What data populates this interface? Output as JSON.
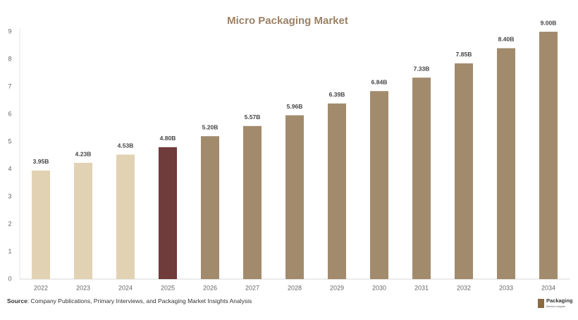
{
  "chart_data": {
    "type": "bar",
    "title": "Micro Packaging Market",
    "categories": [
      "2022",
      "2023",
      "2024",
      "2025",
      "2026",
      "2027",
      "2028",
      "2029",
      "2030",
      "2031",
      "2032",
      "2033",
      "2034"
    ],
    "values": [
      3.95,
      4.23,
      4.53,
      4.8,
      5.2,
      5.57,
      5.96,
      6.39,
      6.84,
      7.33,
      7.85,
      8.4,
      9.0
    ],
    "value_labels": [
      "3.95B",
      "4.23B",
      "4.53B",
      "4.80B",
      "5.20B",
      "5.57B",
      "5.96B",
      "6.39B",
      "6.84B",
      "7.33B",
      "7.85B",
      "8.40B",
      "9.00B"
    ],
    "colors": [
      "#e2d2b4",
      "#e2d2b4",
      "#e2d2b4",
      "#6f3b3b",
      "#a28b6d",
      "#a28b6d",
      "#a28b6d",
      "#a28b6d",
      "#a28b6d",
      "#a28b6d",
      "#a28b6d",
      "#a28b6d",
      "#a28b6d"
    ],
    "ylim": [
      0,
      9
    ],
    "yticks": [
      0,
      1,
      2,
      3,
      4,
      5,
      6,
      7,
      8,
      9
    ],
    "grid": false
  },
  "source": {
    "label": "Source",
    "text": ": Company Publications, Primary Interviews, and Packaging Market Insights Analysis"
  },
  "logo": {
    "name": "Packaging",
    "tagline": "Market Insights"
  }
}
